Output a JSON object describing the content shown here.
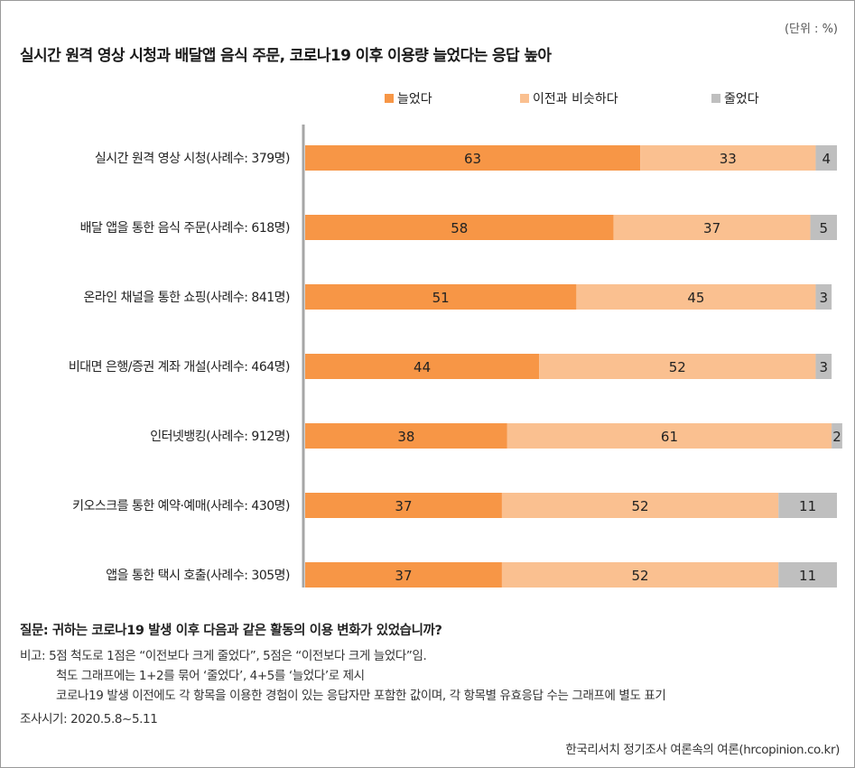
{
  "unit": "(단위 : %)",
  "colors": {
    "increased": "#F79646",
    "similar": "#FAC090",
    "decreased": "#BFBFBF",
    "axis": "#A6A6A6"
  },
  "chart_data": {
    "type": "bar",
    "orientation": "horizontal-stacked-100",
    "title": "실시간 원격 영상 시청과 배달앱 음식 주문, 코로나19 이후 이용량 늘었다는 응답 높아",
    "legend_position": "top",
    "categories": [
      "실시간 원격 영상 시청(사례수: 379명)",
      "배달 앱을 통한 음식 주문(사례수: 618명)",
      "온라인 채널을 통한 쇼핑(사례수: 841명)",
      "비대면 은행/증권 계좌 개설(사례수: 464명)",
      "인터넷뱅킹(사례수: 912명)",
      "키오스크를 통한 예약·예매(사례수: 430명)",
      "앱을 통한 택시 호출(사례수: 305명)"
    ],
    "series": [
      {
        "name": "늘었다",
        "values": [
          63,
          58,
          51,
          44,
          38,
          37,
          37
        ]
      },
      {
        "name": "이전과 비슷하다",
        "values": [
          33,
          37,
          45,
          52,
          61,
          52,
          52
        ]
      },
      {
        "name": "줄었다",
        "values": [
          4,
          5,
          3,
          3,
          2,
          11,
          11
        ]
      }
    ],
    "xlim": [
      0,
      100
    ]
  },
  "notes": {
    "question": "질문: 귀하는 코로나19 발생 이후 다음과 같은 활동의 이용 변화가 있었습니까?",
    "remark_1": "비고: 5점 척도로 1점은 “이전보다 크게 줄었다”, 5점은 “이전보다 크게 늘었다”임.",
    "remark_2": "척도 그래프에는 1+2를 묶어 ‘줄었다’, 4+5를 ‘늘었다’로 제시",
    "remark_3": "코로나19 발생 이전에도 각 항목을 이용한 경험이 있는 응답자만 포함한 값이며, 각 항목별 유효응답 수는 그래프에 별도 표기",
    "period": "조사시기: 2020.5.8~5.11"
  },
  "source": "한국리서치 정기조사 여론속의 여론(hrcopinion.co.kr)"
}
